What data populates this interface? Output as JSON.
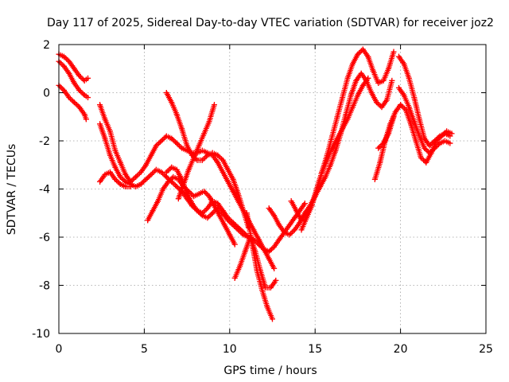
{
  "chart_data": {
    "type": "scatter",
    "title": "Day 117 of 2025, Sidereal Day-to-day VTEC variation (SDTVAR) for receiver joz2",
    "xlabel": "GPS time / hours",
    "ylabel": "SDTVAR / TECUs",
    "xlim": [
      0,
      25
    ],
    "ylim": [
      -10,
      2
    ],
    "x_ticks": [
      0,
      5,
      10,
      15,
      20,
      25
    ],
    "y_ticks": [
      -10,
      -8,
      -6,
      -4,
      -2,
      0,
      2
    ],
    "x_tick_labels": [
      "0",
      "5",
      "10",
      "15",
      "20",
      "25"
    ],
    "y_tick_labels": [
      "-10",
      "-8",
      "-6",
      "-4",
      "-2",
      "0",
      "2"
    ],
    "grid": true,
    "marker": "plus",
    "series_color": "#ff0000",
    "series": [
      {
        "x": [
          0.0,
          0.3,
          0.6,
          0.9,
          1.2,
          1.5,
          1.7
        ],
        "y": [
          1.6,
          1.5,
          1.3,
          1.0,
          0.7,
          0.5,
          0.6
        ]
      },
      {
        "x": [
          0.0,
          0.3,
          0.6,
          0.9,
          1.2,
          1.5,
          1.7
        ],
        "y": [
          1.3,
          1.1,
          0.8,
          0.4,
          0.1,
          -0.1,
          -0.2
        ]
      },
      {
        "x": [
          0.0,
          0.3,
          0.6,
          0.9,
          1.2,
          1.5,
          1.6
        ],
        "y": [
          0.3,
          0.1,
          -0.2,
          -0.4,
          -0.6,
          -0.9,
          -1.1
        ]
      },
      {
        "x": [
          2.4,
          2.7,
          3.0,
          3.3,
          3.6,
          3.9,
          4.2,
          4.5,
          4.8,
          5.1,
          5.4,
          5.7,
          6.0,
          6.3,
          6.6,
          6.9,
          7.2,
          7.5,
          7.8,
          8.1,
          8.4,
          8.7,
          9.0,
          9.3,
          9.6,
          9.9,
          10.2,
          10.5,
          10.8,
          11.1,
          11.4,
          11.7,
          12.0,
          12.3,
          12.6
        ],
        "y": [
          -0.5,
          -1.1,
          -1.6,
          -2.4,
          -2.9,
          -3.4,
          -3.7,
          -3.5,
          -3.3,
          -3.0,
          -2.6,
          -2.2,
          -2.0,
          -1.8,
          -1.9,
          -2.1,
          -2.3,
          -2.4,
          -2.5,
          -2.5,
          -2.4,
          -2.5,
          -2.6,
          -2.9,
          -3.3,
          -3.7,
          -4.1,
          -4.5,
          -4.9,
          -5.3,
          -5.7,
          -6.1,
          -6.5,
          -6.9,
          -7.3
        ]
      },
      {
        "x": [
          2.4,
          2.7,
          3.0,
          3.3,
          3.6,
          3.9,
          4.2,
          4.5,
          4.8,
          5.1,
          5.4,
          5.7,
          6.0,
          6.3,
          6.6,
          6.9,
          7.2,
          7.5,
          7.8,
          8.1,
          8.4,
          8.7,
          9.0,
          9.3,
          9.6,
          9.9,
          10.2,
          10.5,
          10.8,
          11.1,
          11.4
        ],
        "y": [
          -1.3,
          -1.9,
          -2.6,
          -3.1,
          -3.5,
          -3.7,
          -3.8,
          -3.9,
          -3.8,
          -3.6,
          -3.4,
          -3.2,
          -3.3,
          -3.5,
          -3.7,
          -3.9,
          -4.1,
          -4.4,
          -4.7,
          -4.9,
          -5.0,
          -4.8,
          -4.5,
          -4.6,
          -4.9,
          -5.2,
          -5.4,
          -5.6,
          -5.8,
          -6.0,
          -6.2
        ]
      },
      {
        "x": [
          2.4,
          2.7,
          3.0,
          3.3,
          3.6,
          3.9,
          4.2
        ],
        "y": [
          -3.7,
          -3.4,
          -3.3,
          -3.6,
          -3.8,
          -3.9,
          -3.9
        ]
      },
      {
        "x": [
          5.2,
          5.5,
          5.8,
          6.1,
          6.4,
          6.7,
          7.0,
          7.3,
          7.6,
          7.9,
          8.2,
          8.5,
          8.8,
          9.1,
          9.4,
          9.7,
          10.0,
          10.3
        ],
        "y": [
          -5.3,
          -4.9,
          -4.5,
          -4.0,
          -3.7,
          -3.5,
          -3.6,
          -3.9,
          -4.1,
          -4.3,
          -4.2,
          -4.1,
          -4.3,
          -4.7,
          -5.1,
          -5.5,
          -5.9,
          -6.3
        ]
      },
      {
        "x": [
          6.3,
          6.6,
          6.9,
          7.2,
          7.5,
          7.8,
          8.1,
          8.4,
          8.7,
          9.0,
          9.3,
          9.6,
          9.9,
          10.2,
          10.5,
          10.8,
          11.1,
          11.4,
          11.7,
          12.0,
          12.3,
          12.6,
          12.9,
          13.2,
          13.5,
          13.8,
          14.1,
          14.4
        ],
        "y": [
          -3.3,
          -3.1,
          -3.2,
          -3.6,
          -4.2,
          -4.6,
          -4.9,
          -5.1,
          -5.2,
          -5.0,
          -4.8,
          -5.0,
          -5.3,
          -5.5,
          -5.7,
          -5.9,
          -6.0,
          -6.1,
          -6.3,
          -6.5,
          -6.6,
          -6.4,
          -6.1,
          -5.8,
          -5.5,
          -5.2,
          -4.9,
          -4.6
        ]
      },
      {
        "x": [
          6.3,
          6.6,
          6.9,
          7.2,
          7.5,
          7.8,
          8.1,
          8.4,
          8.7,
          9.0,
          9.3,
          9.6,
          9.9,
          10.2,
          10.5,
          10.8,
          11.1
        ],
        "y": [
          0.0,
          -0.4,
          -0.9,
          -1.5,
          -2.2,
          -2.6,
          -2.8,
          -2.8,
          -2.6,
          -2.5,
          -2.6,
          -2.8,
          -3.2,
          -3.6,
          -4.2,
          -4.9,
          -5.6
        ]
      },
      {
        "x": [
          7.0,
          7.3,
          7.6,
          7.9,
          8.2,
          8.5,
          8.8,
          9.1
        ],
        "y": [
          -4.4,
          -3.8,
          -3.2,
          -2.7,
          -2.2,
          -1.7,
          -1.2,
          -0.5
        ]
      },
      {
        "x": [
          11.0,
          11.3,
          11.6,
          11.9,
          12.2,
          12.5
        ],
        "y": [
          -5.0,
          -6.2,
          -7.4,
          -8.2,
          -8.9,
          -9.4
        ]
      },
      {
        "x": [
          10.3,
          10.6,
          10.9,
          11.2,
          11.5,
          11.8,
          12.1,
          12.4,
          12.7
        ],
        "y": [
          -7.7,
          -7.2,
          -6.6,
          -6.0,
          -6.6,
          -7.4,
          -8.1,
          -8.1,
          -7.8
        ]
      },
      {
        "x": [
          12.3,
          12.6,
          12.9,
          13.2,
          13.5,
          13.8,
          14.1,
          14.4,
          14.7,
          15.0,
          15.3,
          15.6,
          15.9,
          16.2,
          16.5,
          16.8,
          17.1,
          17.4,
          17.7,
          18.0,
          18.3,
          18.6,
          18.9,
          19.2,
          19.5
        ],
        "y": [
          -4.8,
          -5.1,
          -5.5,
          -5.8,
          -5.9,
          -5.7,
          -5.4,
          -5.0,
          -4.7,
          -4.3,
          -3.9,
          -3.5,
          -3.0,
          -2.4,
          -1.7,
          -0.9,
          -0.1,
          0.5,
          0.8,
          0.5,
          0.0,
          -0.4,
          -0.6,
          -0.3,
          0.5
        ]
      },
      {
        "x": [
          13.6,
          13.9,
          14.2,
          14.5,
          14.8,
          15.1,
          15.4,
          15.7,
          16.0,
          16.3,
          16.6,
          16.9,
          17.2,
          17.5,
          17.8,
          18.1,
          18.4,
          18.7,
          19.0,
          19.3,
          19.6
        ],
        "y": [
          -4.5,
          -4.9,
          -5.3,
          -5.1,
          -4.7,
          -4.0,
          -3.3,
          -2.6,
          -1.8,
          -1.0,
          -0.2,
          0.6,
          1.2,
          1.6,
          1.8,
          1.5,
          0.9,
          0.4,
          0.5,
          1.0,
          1.7
        ]
      },
      {
        "x": [
          14.2,
          14.5,
          14.8,
          15.1,
          15.4,
          15.7,
          16.0,
          16.3,
          16.6,
          16.9,
          17.2,
          17.5,
          17.8,
          18.1
        ],
        "y": [
          -5.7,
          -5.2,
          -4.7,
          -4.0,
          -3.3,
          -2.8,
          -2.3,
          -1.9,
          -1.5,
          -1.1,
          -0.6,
          -0.1,
          0.3,
          0.6
        ]
      },
      {
        "x": [
          18.5,
          18.8,
          19.1,
          19.4,
          19.7,
          20.0,
          20.3,
          20.6,
          20.9,
          21.2,
          21.5,
          21.8,
          22.1,
          22.4,
          22.7,
          23.0
        ],
        "y": [
          -3.6,
          -2.9,
          -2.0,
          -1.3,
          -0.8,
          -0.5,
          -0.7,
          -1.3,
          -2.0,
          -2.7,
          -2.9,
          -2.5,
          -2.0,
          -1.8,
          -1.6,
          -1.7
        ]
      },
      {
        "x": [
          19.9,
          20.2,
          20.5,
          20.8,
          21.1,
          21.4,
          21.7,
          22.0,
          22.3,
          22.6,
          22.9
        ],
        "y": [
          1.5,
          1.2,
          0.6,
          -0.2,
          -1.1,
          -1.9,
          -2.2,
          -2.0,
          -1.8,
          -1.7,
          -1.8
        ]
      },
      {
        "x": [
          19.9,
          20.2,
          20.5,
          20.8,
          21.1,
          21.4,
          21.7,
          22.0,
          22.3,
          22.6,
          22.9
        ],
        "y": [
          0.2,
          -0.1,
          -0.6,
          -1.2,
          -1.8,
          -2.3,
          -2.5,
          -2.3,
          -2.1,
          -2.0,
          -2.1
        ]
      },
      {
        "x": [
          18.7,
          19.0,
          19.3,
          19.6
        ],
        "y": [
          -2.3,
          -2.1,
          -1.7,
          -1.0
        ]
      }
    ]
  }
}
